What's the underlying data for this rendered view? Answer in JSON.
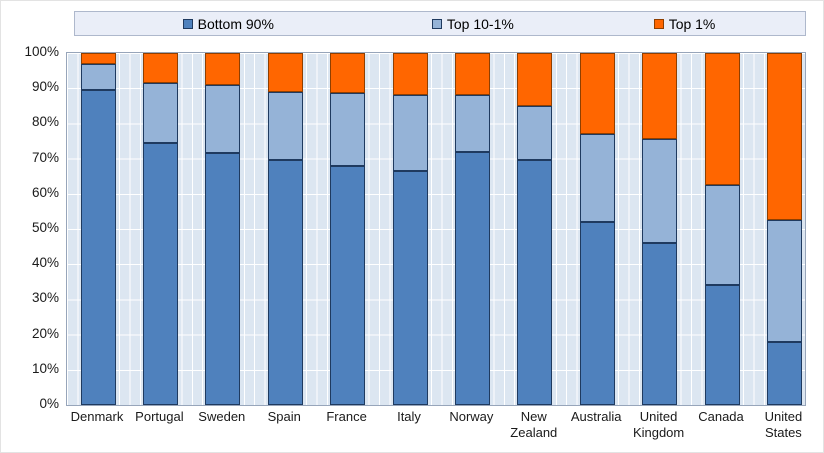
{
  "chart_data": {
    "type": "bar",
    "subtype": "stacked-100-percent",
    "title": "",
    "categories": [
      "Denmark",
      "Portugal",
      "Sweden",
      "Spain",
      "France",
      "Italy",
      "Norway",
      "New Zealand",
      "Australia",
      "United Kingdom",
      "Canada",
      "United States"
    ],
    "series": [
      {
        "name": "Bottom 90%",
        "color": "#4F81BD",
        "border_color": "#1F3A5F",
        "values": [
          89.5,
          74.5,
          71.5,
          69.5,
          68,
          66.5,
          72,
          69.5,
          52,
          46,
          34,
          18
        ]
      },
      {
        "name": "Top 10-1%",
        "color": "#95B3D7",
        "border_color": "#1F3A5F",
        "values": [
          7.5,
          17,
          19.5,
          19.5,
          20.5,
          21.5,
          16,
          15.5,
          25,
          29.5,
          28.5,
          34.5
        ]
      },
      {
        "name": "Top 1%",
        "color": "#FF6600",
        "border_color": "#8F3F00",
        "values": [
          3,
          8.5,
          9,
          11,
          11.5,
          12,
          12,
          15,
          23,
          24.5,
          37.5,
          47.5
        ]
      }
    ],
    "stack_order_bottom_to_top": [
      "Bottom 90%",
      "Top 10-1%",
      "Top 1%"
    ],
    "xlabel": "",
    "ylabel": "",
    "ylim": [
      0,
      100
    ],
    "y_tick_step": 10,
    "y_tick_labels": [
      "0%",
      "10%",
      "20%",
      "30%",
      "40%",
      "50%",
      "60%",
      "70%",
      "80%",
      "90%",
      "100%"
    ],
    "grid": true,
    "legend_position": "top",
    "colors": {
      "plot_bg": "#DCE6F1",
      "gridline": "#FFFFFF",
      "plot_border": "#97A5BA",
      "legend_bg": "#EAEEF8",
      "legend_border": "#AEB8CC",
      "axis_text": "#1A1A1A"
    }
  }
}
